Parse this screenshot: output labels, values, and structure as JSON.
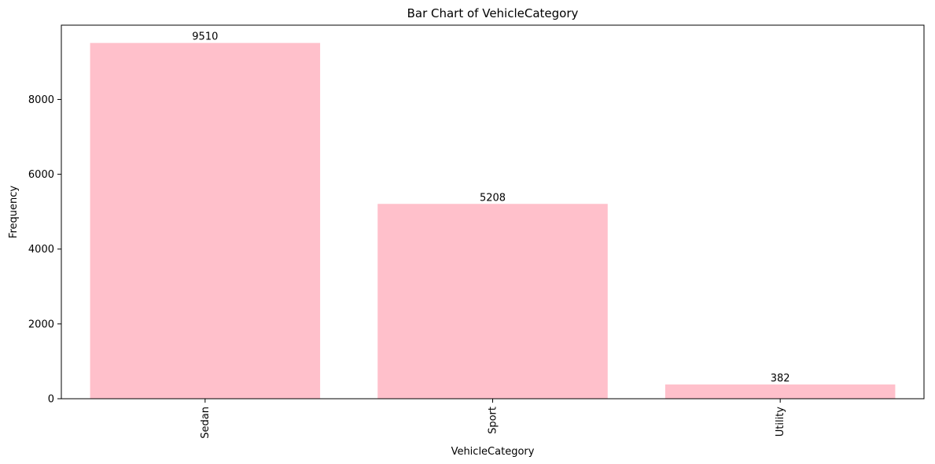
{
  "chart_data": {
    "type": "bar",
    "title": "Bar Chart of VehicleCategory",
    "xlabel": "VehicleCategory",
    "ylabel": "Frequency",
    "categories": [
      "Sedan",
      "Sport",
      "Utility"
    ],
    "values": [
      9510,
      5208,
      382
    ],
    "data_labels": [
      "9510",
      "5208",
      "382"
    ],
    "ylim": [
      0,
      9985.5
    ],
    "yticks": [
      0,
      2000,
      4000,
      6000,
      8000
    ],
    "ytick_labels": [
      "0",
      "2000",
      "4000",
      "6000",
      "8000"
    ],
    "bar_color": "#ffc0cb",
    "grid": false,
    "legend": "none",
    "x_tick_rotation": "vertical"
  }
}
